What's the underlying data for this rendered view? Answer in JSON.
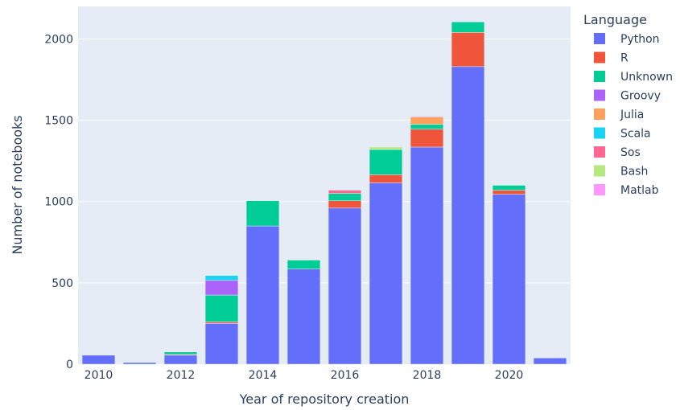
{
  "chart_data": {
    "type": "bar",
    "barmode": "stacked",
    "x": [
      2010,
      2011,
      2012,
      2013,
      2014,
      2015,
      2016,
      2017,
      2018,
      2019,
      2020,
      2021
    ],
    "xlabel": "Year of repository creation",
    "ylabel": "Number of notebooks",
    "xticks": [
      "2010",
      "2012",
      "2014",
      "2016",
      "2018",
      "2020"
    ],
    "yticks": [
      "0",
      "500",
      "1000",
      "1500",
      "2000"
    ],
    "ylim": [
      0,
      2200
    ],
    "grid": true,
    "legend_title": "Language",
    "legend_position": "right",
    "series": [
      {
        "name": "Python",
        "color": "#636efa",
        "values": [
          55,
          10,
          55,
          250,
          850,
          585,
          960,
          1115,
          1335,
          1830,
          1045,
          38
        ]
      },
      {
        "name": "R",
        "color": "#ef553b",
        "values": [
          0,
          0,
          5,
          10,
          0,
          0,
          45,
          50,
          110,
          210,
          25,
          0
        ]
      },
      {
        "name": "Unknown",
        "color": "#00cc96",
        "values": [
          0,
          0,
          15,
          165,
          155,
          55,
          45,
          155,
          30,
          65,
          30,
          0
        ]
      },
      {
        "name": "Groovy",
        "color": "#ab63fa",
        "values": [
          0,
          0,
          0,
          90,
          0,
          0,
          0,
          0,
          0,
          0,
          0,
          0
        ]
      },
      {
        "name": "Julia",
        "color": "#ffa15a",
        "values": [
          0,
          0,
          0,
          0,
          0,
          0,
          0,
          0,
          45,
          0,
          0,
          0
        ]
      },
      {
        "name": "Scala",
        "color": "#19d3f3",
        "values": [
          0,
          0,
          0,
          30,
          0,
          0,
          0,
          0,
          0,
          0,
          0,
          0
        ]
      },
      {
        "name": "Sos",
        "color": "#ff6692",
        "values": [
          0,
          0,
          0,
          0,
          0,
          0,
          20,
          0,
          0,
          0,
          0,
          0
        ]
      },
      {
        "name": "Bash",
        "color": "#b6e880",
        "values": [
          0,
          0,
          0,
          0,
          0,
          0,
          0,
          15,
          0,
          0,
          0,
          0
        ]
      },
      {
        "name": "Matlab",
        "color": "#ff97ff",
        "values": [
          0,
          0,
          0,
          0,
          0,
          0,
          0,
          0,
          5,
          0,
          0,
          0
        ]
      }
    ]
  }
}
